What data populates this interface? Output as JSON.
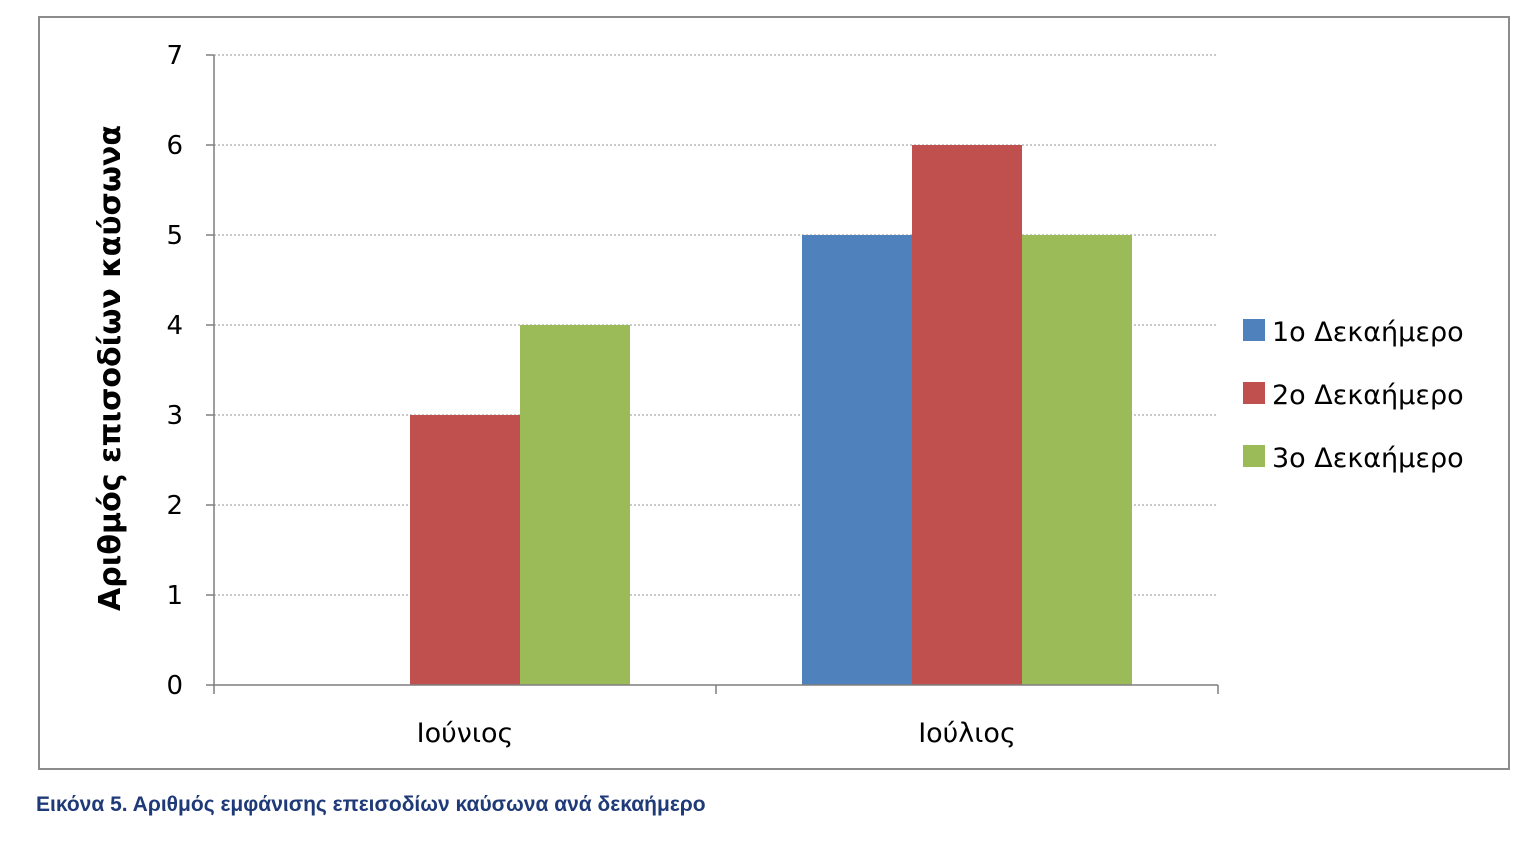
{
  "caption": "Εικόνα 5. Αριθμός εμφάνισης επεισοδίων καύσωνα ανά δεκαήμερο",
  "chart_data": {
    "type": "bar",
    "title": "",
    "xlabel": "",
    "ylabel": "Αριθμός επισοδίων καύσωνα",
    "categories": [
      "Ιούνιος",
      "Ιούλιος"
    ],
    "series": [
      {
        "name": "1ο Δεκαήμερο",
        "color": "#4f81bd",
        "values": [
          0,
          5
        ]
      },
      {
        "name": "2ο Δεκαήμερο",
        "color": "#c0504d",
        "values": [
          3,
          6
        ]
      },
      {
        "name": "3ο Δεκαήμερο",
        "color": "#9bbb59",
        "values": [
          4,
          5
        ]
      }
    ],
    "ylim": [
      0,
      7
    ],
    "yticks": [
      "0",
      "1",
      "2",
      "3",
      "4",
      "5",
      "6",
      "7"
    ],
    "grid": true,
    "legend_position": "right"
  }
}
